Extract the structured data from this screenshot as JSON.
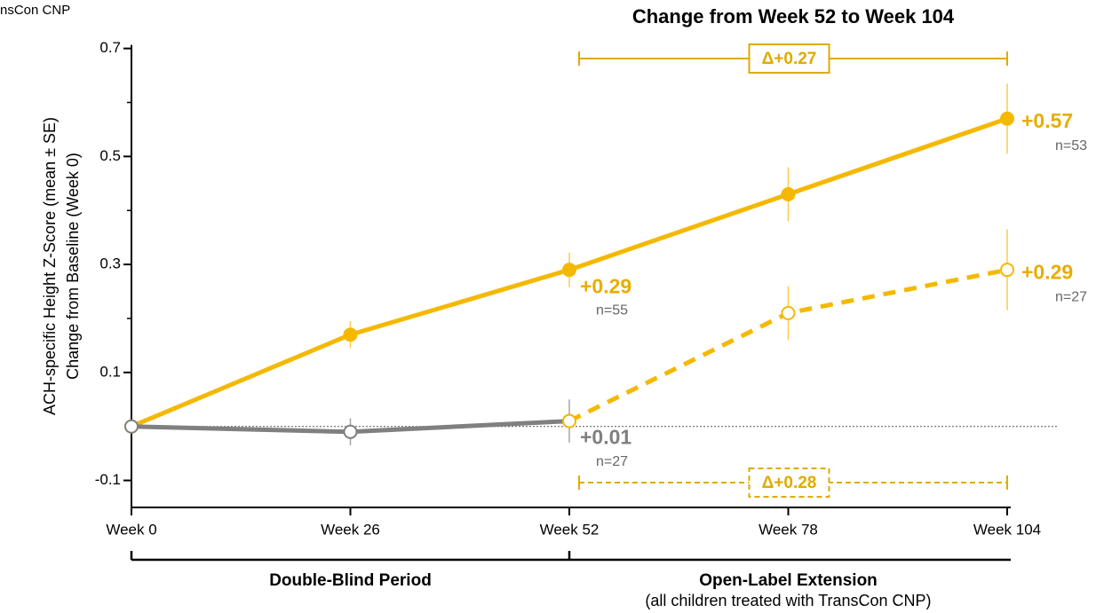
{
  "chart_data": {
    "type": "line",
    "title": "Change from Week 52 to Week 104",
    "cropped_label": "nsCon CNP",
    "y_label": [
      "ACH-specific Height Z-Score (mean ± SE)",
      "Change from Baseline (Week 0)"
    ],
    "categories": [
      "Week 0",
      "Week 26",
      "Week 52",
      "Week 78",
      "Week 104"
    ],
    "ylim": [
      -0.15,
      0.7
    ],
    "yticks": [
      0.7,
      0.5,
      0.3,
      0.1,
      -0.1
    ],
    "yminor": [
      0.6,
      0.4,
      0.2,
      0
    ],
    "reference_line": 0,
    "series": [
      {
        "color": "#f5b800",
        "dash": false,
        "open": false,
        "values": [
          0,
          0.17,
          0.29,
          0.43,
          0.57
        ],
        "errors": [
          0,
          0.025,
          0.032,
          0.05,
          0.065
        ],
        "value_labels": [
          null,
          null,
          "+0.29",
          null,
          "+0.57"
        ],
        "n_labels": [
          null,
          null,
          "n=55",
          null,
          "n=53"
        ]
      },
      {
        "color": "#808080",
        "dash": false,
        "open": true,
        "values": [
          0,
          -0.01,
          0.01,
          null,
          null
        ],
        "errors": [
          0,
          0.025,
          0.04,
          null,
          null
        ],
        "value_labels": [
          null,
          null,
          "+0.01",
          null,
          null
        ],
        "n_labels": [
          null,
          null,
          "n=27",
          null,
          null
        ]
      },
      {
        "color": "#f5b800",
        "dash": true,
        "open": true,
        "values": [
          null,
          null,
          0.01,
          0.21,
          0.29
        ],
        "errors": [
          null,
          null,
          null,
          0.05,
          0.075
        ],
        "value_labels": [
          null,
          null,
          null,
          null,
          "+0.29"
        ],
        "n_labels": [
          null,
          null,
          null,
          null,
          "n=27"
        ]
      }
    ],
    "brackets": [
      {
        "label": "Δ+0.27",
        "dash": false
      },
      {
        "label": "Δ+0.28",
        "dash": true
      }
    ],
    "periods": [
      {
        "label": "Double-Blind Period"
      },
      {
        "label": "Open-Label Extension",
        "note": "(all children treated with TransCon CNP)"
      }
    ]
  }
}
